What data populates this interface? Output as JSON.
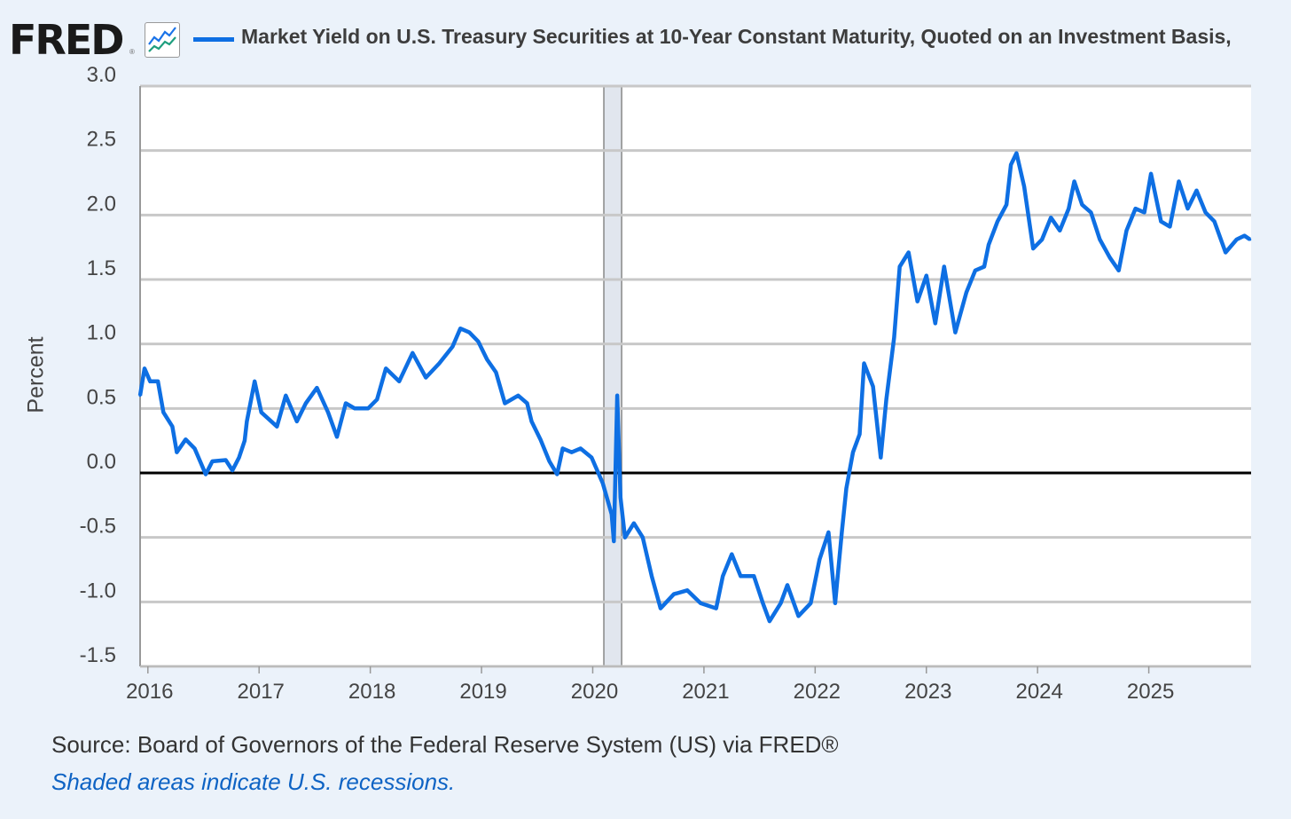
{
  "header": {
    "logo": "FRED",
    "logo_registered": "®",
    "series_title": "Market Yield on U.S. Treasury Securities at 10-Year Constant Maturity, Quoted on an Investment Basis,"
  },
  "footer": {
    "source": "Source: Board of Governors of the Federal Reserve System (US) via FRED®",
    "recession_note": "Shaded areas indicate U.S. recessions."
  },
  "colors": {
    "line": "#0e6fe3",
    "recession": "#e1e6ee",
    "grid": "#c8c8c8",
    "zero": "#000000"
  },
  "chart_data": {
    "type": "line",
    "title": "Market Yield on U.S. Treasury Securities at 10-Year Constant Maturity, Quoted on an Investment Basis,",
    "xlabel": "",
    "ylabel": "Percent",
    "xlim": [
      2015.93,
      2025.92
    ],
    "ylim": [
      -1.5,
      3.0
    ],
    "yticks": [
      "3.0",
      "2.5",
      "2.0",
      "1.5",
      "1.0",
      "0.5",
      "0.0",
      "-0.5",
      "-1.0",
      "-1.5"
    ],
    "ytick_values": [
      3.0,
      2.5,
      2.0,
      1.5,
      1.0,
      0.5,
      0.0,
      -0.5,
      -1.0,
      -1.5
    ],
    "xticks": [
      "2016",
      "2017",
      "2018",
      "2019",
      "2020",
      "2021",
      "2022",
      "2023",
      "2024",
      "2025"
    ],
    "xtick_values": [
      2016,
      2017,
      2018,
      2019,
      2020,
      2021,
      2022,
      2023,
      2024,
      2025
    ],
    "grid": true,
    "legend": "top",
    "recessions": [
      [
        2020.1,
        2020.26
      ]
    ],
    "series": [
      {
        "name": "Market Yield on U.S. Treasury Securities at 10-Year Constant Maturity, Quoted on an Investment Basis,",
        "points": [
          [
            2015.93,
            0.6
          ],
          [
            2015.97,
            0.81
          ],
          [
            2016.02,
            0.71
          ],
          [
            2016.09,
            0.71
          ],
          [
            2016.14,
            0.47
          ],
          [
            2016.22,
            0.36
          ],
          [
            2016.26,
            0.16
          ],
          [
            2016.34,
            0.26
          ],
          [
            2016.42,
            0.19
          ],
          [
            2016.52,
            -0.01
          ],
          [
            2016.58,
            0.09
          ],
          [
            2016.7,
            0.1
          ],
          [
            2016.76,
            0.02
          ],
          [
            2016.82,
            0.12
          ],
          [
            2016.87,
            0.25
          ],
          [
            2016.89,
            0.4
          ],
          [
            2016.96,
            0.71
          ],
          [
            2017.02,
            0.47
          ],
          [
            2017.16,
            0.36
          ],
          [
            2017.24,
            0.6
          ],
          [
            2017.34,
            0.4
          ],
          [
            2017.42,
            0.54
          ],
          [
            2017.52,
            0.66
          ],
          [
            2017.62,
            0.47
          ],
          [
            2017.7,
            0.28
          ],
          [
            2017.78,
            0.54
          ],
          [
            2017.86,
            0.5
          ],
          [
            2017.98,
            0.5
          ],
          [
            2018.06,
            0.57
          ],
          [
            2018.14,
            0.81
          ],
          [
            2018.26,
            0.71
          ],
          [
            2018.38,
            0.93
          ],
          [
            2018.5,
            0.74
          ],
          [
            2018.62,
            0.85
          ],
          [
            2018.74,
            0.98
          ],
          [
            2018.81,
            1.12
          ],
          [
            2018.89,
            1.09
          ],
          [
            2018.97,
            1.02
          ],
          [
            2019.05,
            0.88
          ],
          [
            2019.13,
            0.78
          ],
          [
            2019.21,
            0.54
          ],
          [
            2019.33,
            0.6
          ],
          [
            2019.41,
            0.54
          ],
          [
            2019.45,
            0.4
          ],
          [
            2019.53,
            0.26
          ],
          [
            2019.61,
            0.09
          ],
          [
            2019.68,
            -0.01
          ],
          [
            2019.73,
            0.19
          ],
          [
            2019.81,
            0.16
          ],
          [
            2019.89,
            0.19
          ],
          [
            2019.99,
            0.12
          ],
          [
            2020.09,
            -0.08
          ],
          [
            2020.17,
            -0.32
          ],
          [
            2020.19,
            -0.53
          ],
          [
            2020.22,
            0.6
          ],
          [
            2020.25,
            -0.19
          ],
          [
            2020.29,
            -0.5
          ],
          [
            2020.37,
            -0.39
          ],
          [
            2020.45,
            -0.5
          ],
          [
            2020.53,
            -0.8
          ],
          [
            2020.61,
            -1.05
          ],
          [
            2020.73,
            -0.94
          ],
          [
            2020.85,
            -0.91
          ],
          [
            2020.97,
            -1.01
          ],
          [
            2021.11,
            -1.05
          ],
          [
            2021.17,
            -0.8
          ],
          [
            2021.25,
            -0.63
          ],
          [
            2021.33,
            -0.8
          ],
          [
            2021.45,
            -0.8
          ],
          [
            2021.53,
            -1.01
          ],
          [
            2021.59,
            -1.15
          ],
          [
            2021.69,
            -1.01
          ],
          [
            2021.75,
            -0.87
          ],
          [
            2021.85,
            -1.11
          ],
          [
            2021.96,
            -1.01
          ],
          [
            2022.04,
            -0.67
          ],
          [
            2022.12,
            -0.46
          ],
          [
            2022.18,
            -1.01
          ],
          [
            2022.24,
            -0.46
          ],
          [
            2022.28,
            -0.12
          ],
          [
            2022.34,
            0.16
          ],
          [
            2022.4,
            0.3
          ],
          [
            2022.44,
            0.85
          ],
          [
            2022.52,
            0.67
          ],
          [
            2022.59,
            0.12
          ],
          [
            2022.64,
            0.57
          ],
          [
            2022.71,
            1.05
          ],
          [
            2022.76,
            1.6
          ],
          [
            2022.84,
            1.71
          ],
          [
            2022.92,
            1.33
          ],
          [
            2023.0,
            1.53
          ],
          [
            2023.08,
            1.16
          ],
          [
            2023.16,
            1.6
          ],
          [
            2023.26,
            1.09
          ],
          [
            2023.36,
            1.4
          ],
          [
            2023.44,
            1.57
          ],
          [
            2023.52,
            1.6
          ],
          [
            2023.56,
            1.77
          ],
          [
            2023.64,
            1.95
          ],
          [
            2023.72,
            2.08
          ],
          [
            2023.76,
            2.39
          ],
          [
            2023.81,
            2.48
          ],
          [
            2023.88,
            2.22
          ],
          [
            2023.96,
            1.74
          ],
          [
            2024.04,
            1.81
          ],
          [
            2024.12,
            1.98
          ],
          [
            2024.2,
            1.88
          ],
          [
            2024.28,
            2.05
          ],
          [
            2024.33,
            2.26
          ],
          [
            2024.4,
            2.08
          ],
          [
            2024.48,
            2.02
          ],
          [
            2024.56,
            1.81
          ],
          [
            2024.65,
            1.67
          ],
          [
            2024.73,
            1.57
          ],
          [
            2024.8,
            1.88
          ],
          [
            2024.88,
            2.05
          ],
          [
            2024.96,
            2.02
          ],
          [
            2025.02,
            2.32
          ],
          [
            2025.11,
            1.95
          ],
          [
            2025.19,
            1.91
          ],
          [
            2025.27,
            2.26
          ],
          [
            2025.35,
            2.05
          ],
          [
            2025.43,
            2.19
          ],
          [
            2025.51,
            2.02
          ],
          [
            2025.59,
            1.95
          ],
          [
            2025.69,
            1.71
          ],
          [
            2025.79,
            1.81
          ],
          [
            2025.86,
            1.84
          ],
          [
            2025.91,
            1.81
          ]
        ]
      }
    ]
  }
}
